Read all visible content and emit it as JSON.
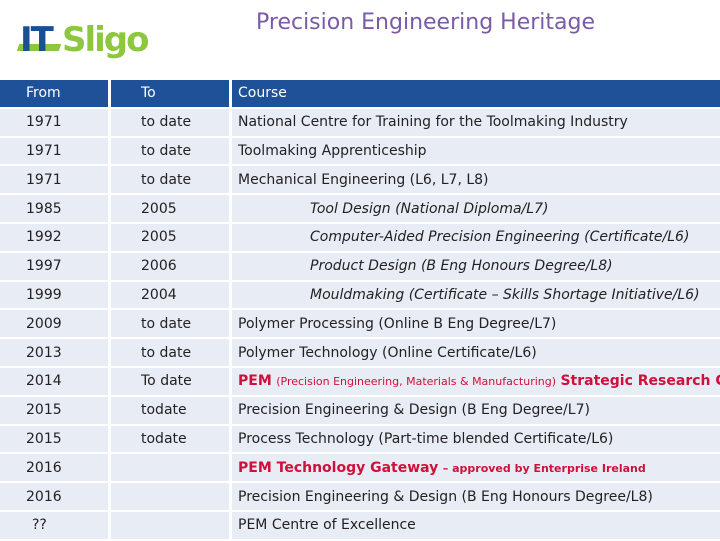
{
  "logo": {
    "it": "IT",
    "sligo": "Sligo"
  },
  "title": "Precision Engineering Heritage",
  "headers": {
    "from": "From",
    "to": "To",
    "course": "Course"
  },
  "rows": [
    {
      "from": "1971",
      "to": "to date",
      "course": "National Centre for Training for the Toolmaking Industry"
    },
    {
      "from": "1971",
      "to": "to date",
      "course": "Toolmaking Apprenticeship"
    },
    {
      "from": "1971",
      "to": "to date",
      "course": "Mechanical Engineering (L6, L7, L8)"
    },
    {
      "from": "1985",
      "to": "2005",
      "course": "Tool Design (National Diploma/L7)"
    },
    {
      "from": "1992",
      "to": "2005",
      "course": "Computer-Aided Precision Engineering (Certificate/L6)"
    },
    {
      "from": "1997",
      "to": "2006",
      "course": "Product Design (B Eng Honours Degree/L8)"
    },
    {
      "from": "1999",
      "to": "2004",
      "course": "Mouldmaking (Certificate – Skills Shortage Initiative/L6)"
    },
    {
      "from": "2009",
      "to": "to date",
      "course": "Polymer Processing (Online B Eng Degree/L7)"
    },
    {
      "from": "2013",
      "to": "to date",
      "course": "Polymer Technology (Online Certificate/L6)"
    },
    {
      "from": "2014",
      "to": "To date",
      "course_a": "PEM",
      "course_b": "(Precision Engineering, Materials & Manufacturing)",
      "course_c": "Strategic Research Centre"
    },
    {
      "from": "2015",
      "to": "todate",
      "course": "Precision Engineering & Design (B Eng Degree/L7)"
    },
    {
      "from": "2015",
      "to": "todate",
      "course": "Process Technology (Part-time blended Certificate/L6)"
    },
    {
      "from": "2016",
      "to": "",
      "course_a": "PEM Technology Gateway",
      "course_b": "– approved by Enterprise Ireland"
    },
    {
      "from": "2016",
      "to": "",
      "course": "Precision Engineering & Design (B Eng Honours Degree/L8)"
    },
    {
      "from": "??",
      "to": "",
      "course": "PEM Centre of Excellence"
    }
  ]
}
